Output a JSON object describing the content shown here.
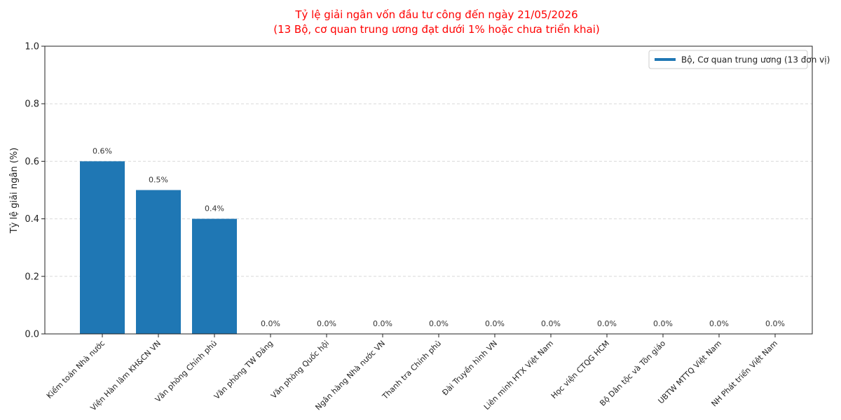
{
  "chart_data": {
    "type": "bar",
    "title": "Tỷ lệ giải ngân vốn đầu tư công đến ngày 21/05/2026",
    "subtitle": "(13 Bộ, cơ quan trung ương đạt dưới 1% hoặc chưa triển khai)",
    "ylabel": "Tỷ lệ giải ngân (%)",
    "xlabel": "",
    "ylim": [
      0,
      1.0
    ],
    "yticks": [
      0.0,
      0.2,
      0.4,
      0.6,
      0.8,
      1.0
    ],
    "ytick_labels": [
      "0.0",
      "0.2",
      "0.4",
      "0.6",
      "0.8",
      "1.0"
    ],
    "grid": "y-dashed",
    "legend": {
      "position": "top-right",
      "label": "Bộ, Cơ quan trung ương (13 đơn vị)"
    },
    "categories": [
      "Kiểm toán Nhà nước",
      "Viện Hàn lâm KH&CN VN",
      "Văn phòng Chính phủ",
      "Văn phòng TW Đảng",
      "Văn phòng Quốc hội",
      "Ngân hàng Nhà nước VN",
      "Thanh tra Chính phủ",
      "Đài Truyền hình VN",
      "Liên minh HTX Việt Nam",
      "Học viện CTQG HCM",
      "Bộ Dân tộc và Tôn giáo",
      "UBTW MTTQ Việt Nam",
      "NH Phát triển Việt Nam"
    ],
    "values": [
      0.6,
      0.5,
      0.4,
      0.0,
      0.0,
      0.0,
      0.0,
      0.0,
      0.0,
      0.0,
      0.0,
      0.0,
      0.0
    ],
    "value_labels": [
      "0.6%",
      "0.5%",
      "0.4%",
      "0.0%",
      "0.0%",
      "0.0%",
      "0.0%",
      "0.0%",
      "0.0%",
      "0.0%",
      "0.0%",
      "0.0%",
      "0.0%"
    ]
  },
  "colors": {
    "bar": "#1f77b4",
    "title": "#ff0000"
  }
}
